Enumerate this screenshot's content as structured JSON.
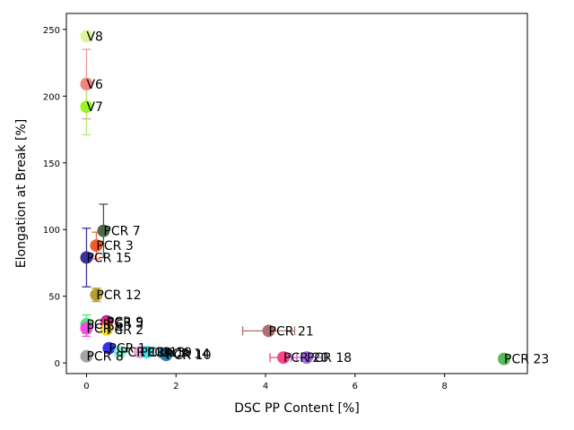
{
  "chart_data": {
    "type": "scatter",
    "xlabel": "DSC PP Content [%]",
    "ylabel": "Elongation at Break [%]",
    "xlim": [
      -0.45,
      9.85
    ],
    "ylim": [
      -8,
      262
    ],
    "xticks": [
      0,
      2,
      4,
      6,
      8
    ],
    "yticks": [
      0,
      50,
      100,
      150,
      200,
      250
    ],
    "grid": false,
    "points": [
      {
        "label": "V8",
        "x": 0.0,
        "y": 245,
        "color": "#ddf59a"
      },
      {
        "label": "V6",
        "x": 0.0,
        "y": 209,
        "yerr": 26,
        "color": "#f2837f",
        "err_color": "#ec9a96"
      },
      {
        "label": "V7",
        "x": 0.0,
        "y": 192,
        "yerr": 21,
        "color": "#99f522",
        "err_color": "#b6e87a"
      },
      {
        "label": "PCR 7",
        "x": 0.38,
        "y": 99,
        "yerr": 20,
        "xerr": 0.08,
        "color": "#4b6b4b",
        "err_color": "#3d5e3d"
      },
      {
        "label": "PCR 3",
        "x": 0.22,
        "y": 88,
        "yerr": 10,
        "xerr": 0.08,
        "color": "#f25c2a",
        "err_color": "#f06a3a"
      },
      {
        "label": "PCR 15",
        "x": 0.0,
        "y": 79,
        "yerr": 22,
        "color": "#3b3394",
        "err_color": "#3b3394"
      },
      {
        "label": "PCR 12",
        "x": 0.22,
        "y": 51,
        "yerr": 5,
        "color": "#b8a02e",
        "err_color": "#b8a02e"
      },
      {
        "label": "PCR 9",
        "x": 0.45,
        "y": 31,
        "color": "#8a1fa6"
      },
      {
        "label": "PCR 6",
        "x": 0.0,
        "y": 29,
        "yerr": 7,
        "color": "#4fe87a",
        "err_color": "#4fe87a"
      },
      {
        "label": "PCR 5",
        "x": 0.45,
        "y": 30,
        "color": "#f52a7a"
      },
      {
        "label": "PCR 4",
        "x": 0.0,
        "y": 26,
        "yerr": 6,
        "color": "#f54ce8",
        "err_color": "#f54ce8"
      },
      {
        "label": "PCR 2",
        "x": 0.45,
        "y": 25,
        "color": "#f5e02a"
      },
      {
        "label": "PCR 1",
        "x": 0.5,
        "y": 11,
        "color": "#3333e8"
      },
      {
        "label": "PCR 8",
        "x": 0.0,
        "y": 5,
        "color": "#a6a6a6"
      },
      {
        "label": "PCR 11",
        "x": 0.75,
        "y": 8,
        "color": "#8af0d2"
      },
      {
        "label": "PCR 13",
        "x": 1.2,
        "y": 8,
        "color": "#f5a3e0"
      },
      {
        "label": "PCR 19",
        "x": 1.35,
        "y": 8,
        "color": "#33e8f0"
      },
      {
        "label": "PCR 14",
        "x": 1.75,
        "y": 7,
        "xerr": 0.12,
        "color": "#2b96c6",
        "err_color": "#2b96c6"
      },
      {
        "label": "PCR 10",
        "x": 1.78,
        "y": 6,
        "color": "#2f7fb0"
      },
      {
        "label": "PCR 21",
        "x": 4.07,
        "y": 24,
        "xerr": 0.58,
        "color": "#b07070",
        "err_color": "#b07070"
      },
      {
        "label": "PCR 20",
        "x": 4.4,
        "y": 4,
        "xerr": 0.3,
        "color": "#f5478a",
        "err_color": "#f5478a"
      },
      {
        "label": "PCR 18",
        "x": 4.92,
        "y": 4,
        "xerr": 0.35,
        "color": "#9f6be8",
        "err_color": "#9f6be8"
      },
      {
        "label": "PCR 23",
        "x": 9.33,
        "y": 3,
        "color": "#5cb85c"
      }
    ]
  }
}
